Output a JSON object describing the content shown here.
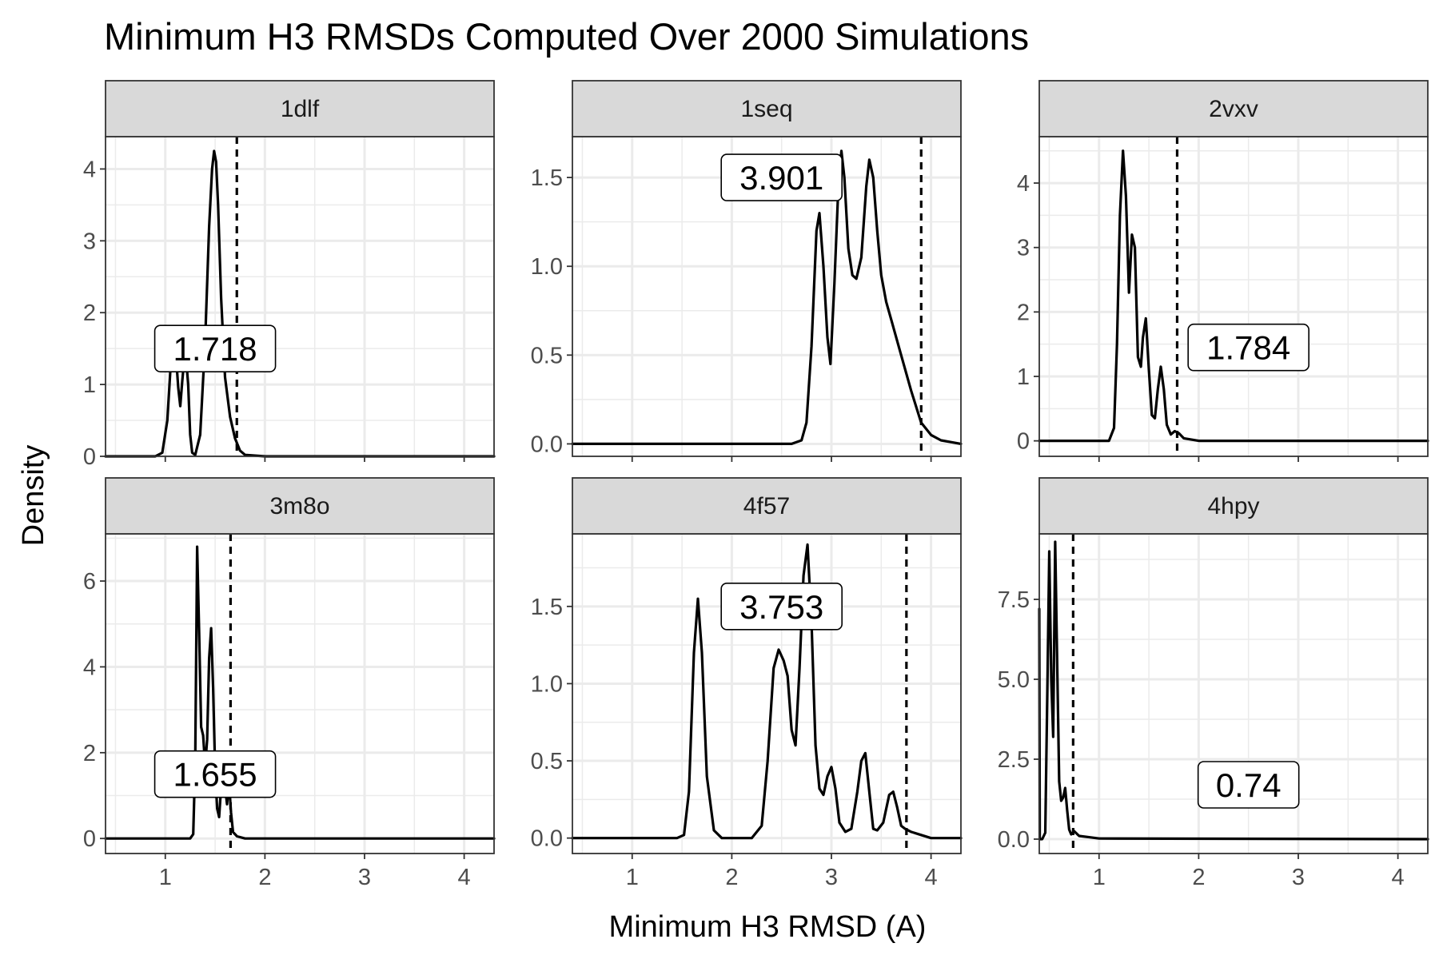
{
  "chart_data": {
    "type": "line",
    "title": "Minimum H3 RMSDs Computed Over 2000 Simulations",
    "xlabel": "Minimum H3 RMSD (A)",
    "ylabel": "Density",
    "xlim": [
      0.4,
      4.3
    ],
    "x_ticks": [
      1,
      2,
      3,
      4
    ],
    "grid": true,
    "panels": [
      {
        "name": "1dlf",
        "ylim": [
          0,
          4.45
        ],
        "y_ticks": [
          0,
          1,
          2,
          3,
          4
        ],
        "y_tick_labels": [
          "0",
          "1",
          "2",
          "3",
          "4"
        ],
        "reference_line": 1.718,
        "annotation": "1.718",
        "annotation_pos": [
          1.5,
          1.5
        ],
        "x": [
          0.4,
          0.9,
          0.97,
          1.02,
          1.06,
          1.08,
          1.1,
          1.13,
          1.15,
          1.17,
          1.2,
          1.23,
          1.25,
          1.27,
          1.3,
          1.35,
          1.4,
          1.44,
          1.47,
          1.49,
          1.51,
          1.53,
          1.56,
          1.6,
          1.65,
          1.7,
          1.75,
          1.8,
          2.0,
          4.3
        ],
        "y": [
          0,
          0,
          0.05,
          0.5,
          1.4,
          1.7,
          1.55,
          0.95,
          0.7,
          1.05,
          1.5,
          1.0,
          0.3,
          0.05,
          0.02,
          0.3,
          1.6,
          3.2,
          4.0,
          4.25,
          4.1,
          3.5,
          2.2,
          1.1,
          0.55,
          0.25,
          0.08,
          0.02,
          0,
          0
        ]
      },
      {
        "name": "1seq",
        "ylim": [
          -0.07,
          1.73
        ],
        "y_ticks": [
          0,
          0.5,
          1.0,
          1.5
        ],
        "y_tick_labels": [
          "0.0",
          "0.5",
          "1.0",
          "1.5"
        ],
        "reference_line": 3.901,
        "annotation": "3.901",
        "annotation_pos": [
          2.5,
          1.5
        ],
        "x": [
          0.4,
          2.6,
          2.7,
          2.75,
          2.8,
          2.85,
          2.88,
          2.92,
          2.96,
          2.99,
          3.03,
          3.07,
          3.1,
          3.13,
          3.17,
          3.21,
          3.25,
          3.3,
          3.35,
          3.38,
          3.42,
          3.46,
          3.5,
          3.55,
          3.6,
          3.7,
          3.8,
          3.9,
          4.0,
          4.1,
          4.2,
          4.3
        ],
        "y": [
          0,
          0,
          0.02,
          0.12,
          0.55,
          1.2,
          1.3,
          1.0,
          0.6,
          0.45,
          0.9,
          1.45,
          1.65,
          1.5,
          1.1,
          0.95,
          0.93,
          1.05,
          1.45,
          1.6,
          1.5,
          1.2,
          0.95,
          0.8,
          0.7,
          0.5,
          0.3,
          0.12,
          0.05,
          0.02,
          0.01,
          0
        ]
      },
      {
        "name": "2vxv",
        "ylim": [
          -0.24,
          4.72
        ],
        "y_ticks": [
          0,
          1,
          2,
          3,
          4
        ],
        "y_tick_labels": [
          "0",
          "1",
          "2",
          "3",
          "4"
        ],
        "reference_line": 1.784,
        "annotation": "1.784",
        "annotation_pos": [
          2.5,
          1.45
        ],
        "x": [
          0.4,
          1.1,
          1.15,
          1.18,
          1.21,
          1.24,
          1.27,
          1.3,
          1.33,
          1.36,
          1.39,
          1.42,
          1.44,
          1.47,
          1.5,
          1.53,
          1.56,
          1.59,
          1.62,
          1.65,
          1.68,
          1.72,
          1.76,
          1.8,
          1.85,
          2.0,
          4.3
        ],
        "y": [
          0,
          0,
          0.2,
          1.5,
          3.5,
          4.5,
          3.8,
          2.3,
          3.2,
          3.0,
          1.3,
          1.15,
          1.6,
          1.9,
          1.1,
          0.4,
          0.35,
          0.8,
          1.15,
          0.8,
          0.25,
          0.1,
          0.15,
          0.12,
          0.04,
          0,
          0
        ]
      },
      {
        "name": "3m8o",
        "ylim": [
          -0.35,
          7.1
        ],
        "y_ticks": [
          0,
          2,
          4,
          6
        ],
        "y_tick_labels": [
          "0",
          "2",
          "4",
          "6"
        ],
        "reference_line": 1.655,
        "annotation": "1.655",
        "annotation_pos": [
          1.5,
          1.5
        ],
        "x": [
          0.4,
          1.25,
          1.28,
          1.3,
          1.32,
          1.34,
          1.36,
          1.38,
          1.4,
          1.42,
          1.44,
          1.46,
          1.48,
          1.5,
          1.52,
          1.54,
          1.56,
          1.58,
          1.6,
          1.62,
          1.64,
          1.66,
          1.68,
          1.72,
          1.8,
          4.3
        ],
        "y": [
          0,
          0,
          0.1,
          1.8,
          6.8,
          4.8,
          2.6,
          2.4,
          1.7,
          2.3,
          4.2,
          4.9,
          3.5,
          1.6,
          0.7,
          0.5,
          1.2,
          1.8,
          1.2,
          0.8,
          1.3,
          0.6,
          0.15,
          0.05,
          0,
          0
        ]
      },
      {
        "name": "4f57",
        "ylim": [
          -0.1,
          1.97
        ],
        "y_ticks": [
          0,
          0.5,
          1.0,
          1.5
        ],
        "y_tick_labels": [
          "0.0",
          "0.5",
          "1.0",
          "1.5"
        ],
        "reference_line": 3.753,
        "annotation": "3.753",
        "annotation_pos": [
          2.5,
          1.5
        ],
        "x": [
          0.4,
          1.45,
          1.52,
          1.57,
          1.62,
          1.66,
          1.7,
          1.75,
          1.82,
          1.9,
          2.2,
          2.3,
          2.36,
          2.42,
          2.47,
          2.52,
          2.56,
          2.6,
          2.64,
          2.68,
          2.72,
          2.76,
          2.8,
          2.84,
          2.88,
          2.92,
          2.96,
          3.0,
          3.04,
          3.08,
          3.14,
          3.2,
          3.26,
          3.3,
          3.34,
          3.38,
          3.42,
          3.46,
          3.52,
          3.58,
          3.62,
          3.66,
          3.7,
          3.74,
          3.8,
          3.9,
          4.0,
          4.3
        ],
        "y": [
          0,
          0,
          0.02,
          0.3,
          1.2,
          1.55,
          1.2,
          0.4,
          0.05,
          0,
          0,
          0.08,
          0.5,
          1.1,
          1.22,
          1.15,
          1.05,
          0.7,
          0.6,
          1.1,
          1.7,
          1.9,
          1.4,
          0.6,
          0.32,
          0.28,
          0.4,
          0.46,
          0.32,
          0.1,
          0.04,
          0.06,
          0.3,
          0.5,
          0.55,
          0.3,
          0.06,
          0.05,
          0.1,
          0.28,
          0.3,
          0.2,
          0.08,
          0.06,
          0.04,
          0.02,
          0,
          0
        ]
      },
      {
        "name": "4hpy",
        "ylim": [
          -0.45,
          9.55
        ],
        "y_ticks": [
          0,
          2.5,
          5.0,
          7.5
        ],
        "y_tick_labels": [
          "0.0",
          "2.5",
          "5.0",
          "7.5"
        ],
        "reference_line": 0.74,
        "annotation": "0.74",
        "annotation_pos": [
          2.5,
          1.7
        ],
        "x": [
          0.4,
          0.405,
          0.41,
          0.415,
          0.43,
          0.46,
          0.48,
          0.5,
          0.52,
          0.54,
          0.56,
          0.58,
          0.6,
          0.62,
          0.64,
          0.66,
          0.68,
          0.7,
          0.72,
          0.75,
          0.8,
          0.9,
          1.0,
          4.3
        ],
        "y": [
          7.2,
          0,
          0,
          0,
          0,
          0.2,
          4.5,
          9.0,
          5.0,
          3.2,
          9.3,
          5.5,
          1.8,
          1.2,
          1.3,
          1.6,
          0.9,
          0.3,
          0.15,
          0.25,
          0.1,
          0.06,
          0.02,
          0
        ]
      }
    ]
  }
}
